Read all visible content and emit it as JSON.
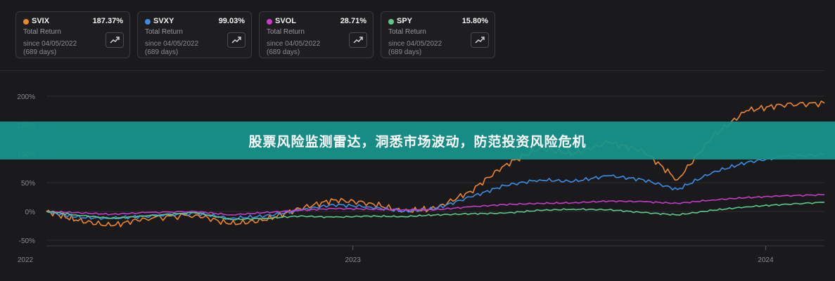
{
  "cards": [
    {
      "ticker": "SVIX",
      "return": "187.37%",
      "label": "Total Return",
      "since": "since 04/05/2022",
      "days": "(689 days)",
      "color": "#f0852d",
      "icon": "trend-up-icon"
    },
    {
      "ticker": "SVXY",
      "return": "99.03%",
      "label": "Total Return",
      "since": "since 04/05/2022",
      "days": "(689 days)",
      "color": "#3a8ee6",
      "icon": "trend-up-icon"
    },
    {
      "ticker": "SVOL",
      "return": "28.71%",
      "label": "Total Return",
      "since": "since 04/05/2022",
      "days": "(689 days)",
      "color": "#c93ac9",
      "icon": "trend-up-icon"
    },
    {
      "ticker": "SPY",
      "return": "15.80%",
      "label": "Total Return",
      "since": "since 04/05/2022",
      "days": "(689 days)",
      "color": "#5cc98a",
      "icon": "trend-up-icon"
    }
  ],
  "banner": {
    "text": "股票风险监测雷达，洞悉市场波动，防范投资风险危机"
  },
  "chart_data": {
    "type": "line",
    "y_ticks": [
      "200%",
      "150%",
      "100%",
      "50%",
      "0%",
      "-50%"
    ],
    "y_tick_values": [
      200,
      150,
      100,
      50,
      0,
      -50
    ],
    "ylim": [
      -50,
      200
    ],
    "x_ticks": [
      "2022",
      "2023",
      "2024"
    ],
    "x_tick_dates": [
      "2022-04-05",
      "2023-01-01",
      "2024-01-01"
    ],
    "x_range": [
      "2022-04-05",
      "2024-02-22"
    ],
    "grid": true,
    "series": [
      {
        "name": "SVIX",
        "color": "#f0852d",
        "x": [
          "2022-04-05",
          "2022-05-01",
          "2022-06-01",
          "2022-07-01",
          "2022-08-15",
          "2022-09-15",
          "2022-10-15",
          "2022-11-15",
          "2022-12-15",
          "2023-01-15",
          "2023-02-15",
          "2023-03-15",
          "2023-04-15",
          "2023-05-15",
          "2023-06-15",
          "2023-07-15",
          "2023-08-15",
          "2023-09-15",
          "2023-10-15",
          "2023-11-15",
          "2023-12-15",
          "2024-01-15",
          "2024-02-22"
        ],
        "y": [
          0,
          -15,
          -25,
          -12,
          -6,
          -22,
          -15,
          5,
          20,
          15,
          0,
          5,
          35,
          80,
          110,
          100,
          120,
          105,
          55,
          130,
          175,
          185,
          188
        ]
      },
      {
        "name": "SVXY",
        "color": "#3a8ee6",
        "x": [
          "2022-04-05",
          "2022-05-01",
          "2022-06-01",
          "2022-07-01",
          "2022-08-15",
          "2022-09-15",
          "2022-10-15",
          "2022-11-15",
          "2022-12-15",
          "2023-01-15",
          "2023-02-15",
          "2023-03-15",
          "2023-04-15",
          "2023-05-15",
          "2023-06-15",
          "2023-07-15",
          "2023-08-15",
          "2023-09-15",
          "2023-10-15",
          "2023-11-15",
          "2023-12-15",
          "2024-01-15",
          "2024-02-22"
        ],
        "y": [
          0,
          -10,
          -12,
          -8,
          -3,
          -12,
          -8,
          2,
          12,
          8,
          0,
          5,
          25,
          45,
          55,
          52,
          62,
          55,
          38,
          68,
          85,
          95,
          99
        ]
      },
      {
        "name": "SVOL",
        "color": "#c93ac9",
        "x": [
          "2022-04-05",
          "2022-05-01",
          "2022-06-01",
          "2022-07-01",
          "2022-08-15",
          "2022-09-15",
          "2022-10-15",
          "2022-11-15",
          "2022-12-15",
          "2023-01-15",
          "2023-02-15",
          "2023-03-15",
          "2023-04-15",
          "2023-05-15",
          "2023-06-15",
          "2023-07-15",
          "2023-08-15",
          "2023-09-15",
          "2023-10-15",
          "2023-11-15",
          "2023-12-15",
          "2024-01-15",
          "2024-02-22"
        ],
        "y": [
          0,
          -2,
          -5,
          -2,
          0,
          -6,
          -2,
          2,
          5,
          4,
          3,
          3,
          8,
          12,
          14,
          15,
          18,
          17,
          14,
          20,
          24,
          27,
          29
        ]
      },
      {
        "name": "SPY",
        "color": "#5cc98a",
        "x": [
          "2022-04-05",
          "2022-05-01",
          "2022-06-01",
          "2022-07-01",
          "2022-08-15",
          "2022-09-15",
          "2022-10-15",
          "2022-11-15",
          "2022-12-15",
          "2023-01-15",
          "2023-02-15",
          "2023-03-15",
          "2023-04-15",
          "2023-05-15",
          "2023-06-15",
          "2023-07-15",
          "2023-08-15",
          "2023-09-15",
          "2023-10-15",
          "2023-11-15",
          "2023-12-15",
          "2024-01-15",
          "2024-02-22"
        ],
        "y": [
          0,
          -6,
          -12,
          -8,
          -2,
          -14,
          -12,
          -8,
          -10,
          -8,
          -9,
          -6,
          -4,
          -3,
          2,
          4,
          3,
          -2,
          -6,
          2,
          8,
          12,
          16
        ]
      }
    ]
  }
}
